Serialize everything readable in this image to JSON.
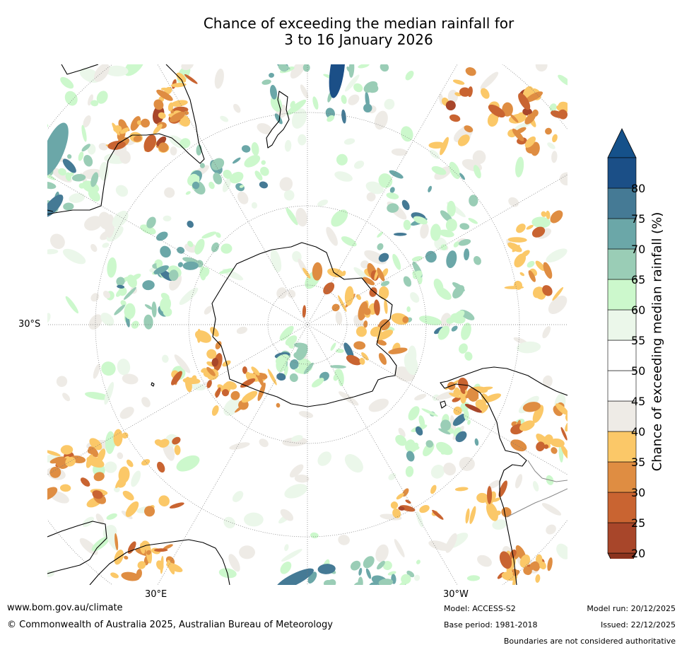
{
  "title": {
    "line1": "Chance of exceeding the median rainfall for",
    "line2": "3 to 16 January 2026"
  },
  "map": {
    "projection": "south-polar-stereographic",
    "label_lat_30s": "30°S",
    "label_lon_30e": "30°E",
    "label_lon_30w": "30°W"
  },
  "colorbar": {
    "title": "Chance of exceeding median rainfall (%)",
    "ticks": [
      "20",
      "25",
      "30",
      "35",
      "40",
      "45",
      "50",
      "55",
      "60",
      "65",
      "70",
      "75",
      "80"
    ],
    "colors": [
      "#a8462a",
      "#c96431",
      "#df8d42",
      "#fbc868",
      "#eeebe6",
      "#ffffff",
      "#ffffff",
      "#ebf7ea",
      "#ccf8cc",
      "#9acdb6",
      "#6ba7a8",
      "#457a95",
      "#1b4f87"
    ],
    "low_arrow_color": "#8b331e",
    "high_arrow_color": "#15518a"
  },
  "footer": {
    "website": "www.bom.gov.au/climate",
    "copyright": "© Commonwealth of Australia 2025, Australian Bureau of Meteorology",
    "model": "Model: ACCESS-S2",
    "base_period": "Base period: 1981-2018",
    "model_run": "Model run: 20/12/2025",
    "issued": "Issued: 22/12/2025",
    "disclaimer": "Boundaries are not considered authoritative"
  }
}
